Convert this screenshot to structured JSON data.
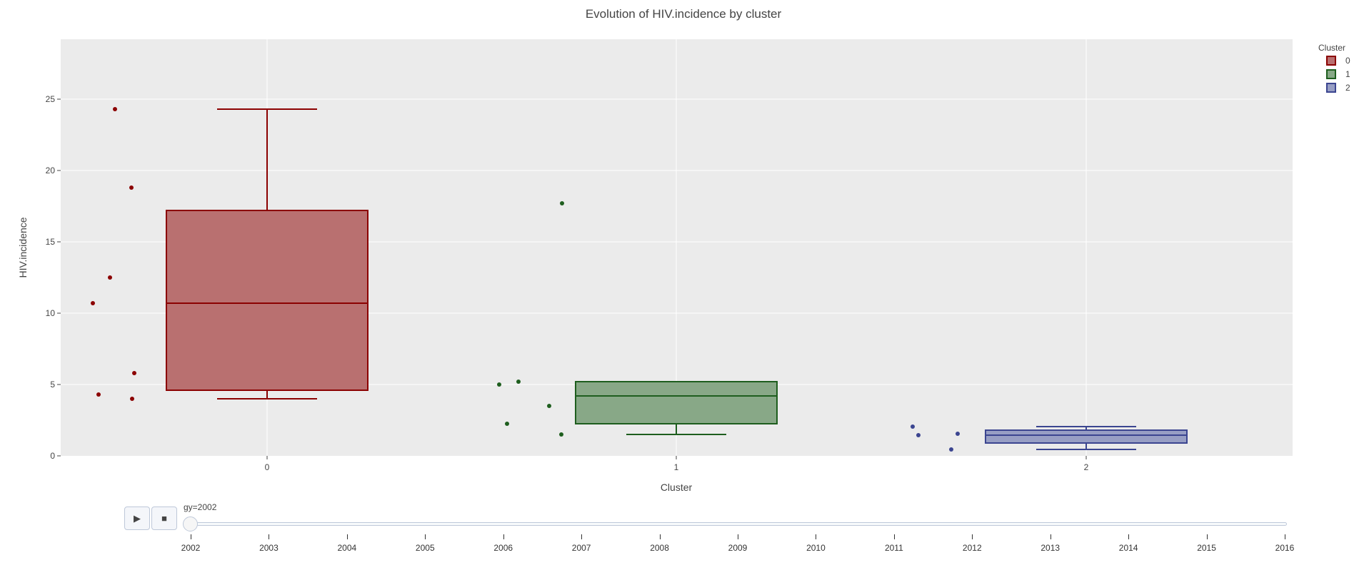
{
  "chart_data": {
    "type": "box",
    "title": "Evolution of HIV.incidence by cluster",
    "xlabel": "Cluster",
    "ylabel": "HIV.incidence",
    "ylim": [
      0,
      29.2
    ],
    "yticks": [
      0,
      5,
      10,
      15,
      20,
      25
    ],
    "categories": [
      "0",
      "1",
      "2"
    ],
    "grid": true,
    "legend_title": "Cluster",
    "legend_position": "top-right",
    "series": [
      {
        "name": "0",
        "color": "#8b0000",
        "fill": "#b97070",
        "min": 4.0,
        "q1": 4.6,
        "median": 10.7,
        "q3": 17.2,
        "max": 24.3,
        "points": [
          24.3,
          18.8,
          12.5,
          10.7,
          5.8,
          4.3,
          4.0
        ]
      },
      {
        "name": "1",
        "color": "#1e5e1e",
        "fill": "#88a887",
        "min": 1.5,
        "q1": 2.25,
        "median": 4.2,
        "q3": 5.2,
        "max": 5.2,
        "points": [
          17.7,
          5.2,
          5.0,
          3.5,
          2.25,
          1.5
        ]
      },
      {
        "name": "2",
        "color": "#3b4590",
        "fill": "#979ec4",
        "min": 0.45,
        "q1": 0.9,
        "median": 1.45,
        "q3": 1.8,
        "max": 2.05,
        "points": [
          2.05,
          1.45,
          1.55,
          0.45
        ]
      }
    ]
  },
  "slider": {
    "current_label": "gy=2002",
    "steps": [
      "2002",
      "2003",
      "2004",
      "2005",
      "2006",
      "2007",
      "2008",
      "2009",
      "2010",
      "2011",
      "2012",
      "2013",
      "2014",
      "2015",
      "2016"
    ]
  },
  "controls": {
    "play_icon": "▶",
    "stop_icon": "■"
  }
}
